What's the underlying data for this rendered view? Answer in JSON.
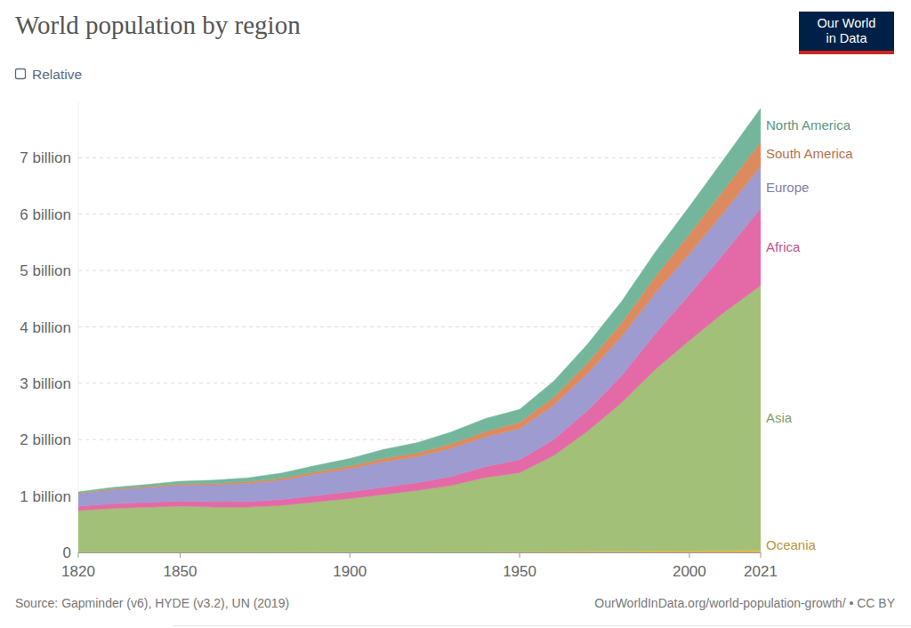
{
  "chart_data": {
    "type": "area",
    "stacked": true,
    "title": "World population by region",
    "toggle_label": "Relative",
    "logo": [
      "Our World",
      "in Data"
    ],
    "source": "Source: Gapminder (v6), HYDE (v3.2), UN (2019)",
    "url_note": "OurWorldInData.org/world-population-growth/ • CC BY",
    "legend": "right",
    "grid": true,
    "x": [
      1820,
      1830,
      1840,
      1850,
      1860,
      1870,
      1880,
      1890,
      1900,
      1910,
      1920,
      1930,
      1940,
      1950,
      1960,
      1970,
      1980,
      1990,
      2000,
      2010,
      2021
    ],
    "xlim": [
      1820,
      2021
    ],
    "xticks": [
      1820,
      1850,
      1900,
      1950,
      2000,
      2021
    ],
    "ylim": [
      0,
      8
    ],
    "yticks": [
      0,
      {
        "value": 1,
        "label": "1 billion"
      },
      {
        "value": 2,
        "label": "2 billion"
      },
      {
        "value": 3,
        "label": "3 billion"
      },
      {
        "value": 4,
        "label": "4 billion"
      },
      {
        "value": 5,
        "label": "5 billion"
      },
      {
        "value": 6,
        "label": "6 billion"
      },
      {
        "value": 7,
        "label": "7 billion"
      }
    ],
    "series": [
      {
        "name": "Oceania",
        "color": "#e3b64f",
        "values": [
          0.002,
          0.002,
          0.002,
          0.002,
          0.003,
          0.003,
          0.004,
          0.005,
          0.006,
          0.007,
          0.009,
          0.01,
          0.011,
          0.013,
          0.016,
          0.02,
          0.023,
          0.027,
          0.031,
          0.037,
          0.044
        ]
      },
      {
        "name": "Asia",
        "color": "#a2c077",
        "values": [
          0.74,
          0.78,
          0.8,
          0.82,
          0.8,
          0.8,
          0.83,
          0.89,
          0.95,
          1.02,
          1.09,
          1.18,
          1.32,
          1.4,
          1.7,
          2.13,
          2.63,
          3.22,
          3.73,
          4.21,
          4.69
        ]
      },
      {
        "name": "Africa",
        "color": "#e46aa7",
        "values": [
          0.075,
          0.08,
          0.085,
          0.09,
          0.095,
          0.1,
          0.105,
          0.115,
          0.12,
          0.13,
          0.14,
          0.16,
          0.19,
          0.23,
          0.285,
          0.365,
          0.48,
          0.635,
          0.81,
          1.04,
          1.37
        ]
      },
      {
        "name": "Europe",
        "color": "#9d9bd0",
        "values": [
          0.225,
          0.25,
          0.265,
          0.285,
          0.3,
          0.32,
          0.345,
          0.38,
          0.41,
          0.45,
          0.46,
          0.5,
          0.53,
          0.55,
          0.605,
          0.657,
          0.694,
          0.721,
          0.726,
          0.736,
          0.745
        ]
      },
      {
        "name": "South America",
        "color": "#dd8b5e",
        "values": [
          0.012,
          0.015,
          0.018,
          0.022,
          0.026,
          0.03,
          0.035,
          0.042,
          0.05,
          0.06,
          0.07,
          0.08,
          0.095,
          0.114,
          0.148,
          0.192,
          0.242,
          0.297,
          0.349,
          0.394,
          0.434
        ]
      },
      {
        "name": "North America",
        "color": "#74b69c",
        "values": [
          0.02,
          0.026,
          0.034,
          0.042,
          0.058,
          0.07,
          0.09,
          0.11,
          0.13,
          0.16,
          0.18,
          0.21,
          0.23,
          0.228,
          0.28,
          0.33,
          0.38,
          0.43,
          0.49,
          0.545,
          0.595
        ]
      }
    ]
  }
}
